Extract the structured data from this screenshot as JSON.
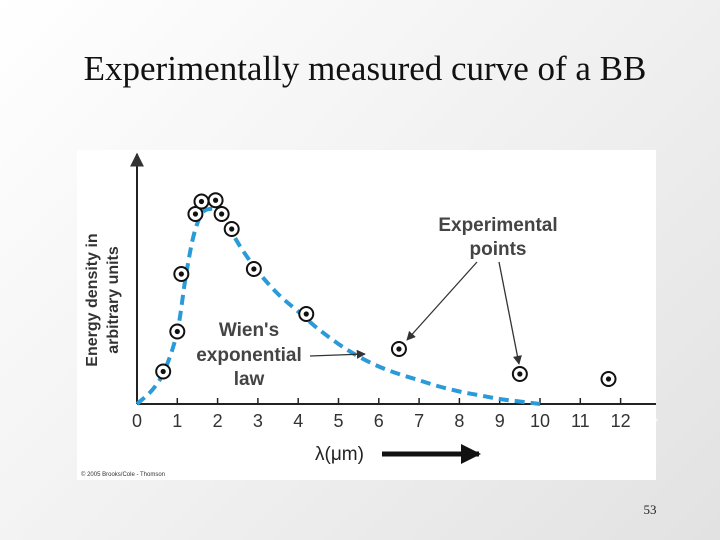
{
  "slide": {
    "title": "Experimentally measured curve of a BB",
    "page_number": "53"
  },
  "chart_data": {
    "type": "scatter",
    "title": "",
    "xlabel": "λ(μm)",
    "ylabel_lines": [
      "Energy density in",
      "arbitrary units"
    ],
    "xlim": [
      0,
      12.5
    ],
    "ylim": [
      0,
      1
    ],
    "x_ticks": [
      "0",
      "1",
      "2",
      "3",
      "4",
      "5",
      "6",
      "7",
      "8",
      "9",
      "10",
      "11",
      "12"
    ],
    "grid": false,
    "series": [
      {
        "kind": "points",
        "x": [
          0.65,
          1.0,
          1.1,
          1.45,
          1.6,
          1.95,
          2.1,
          2.35,
          2.9,
          4.2,
          6.5,
          9.5,
          11.7
        ],
        "y": [
          0.13,
          0.29,
          0.52,
          0.76,
          0.81,
          0.815,
          0.76,
          0.7,
          0.54,
          0.36,
          0.22,
          0.12,
          0.1
        ]
      },
      {
        "kind": "curve",
        "style": "dashed",
        "color": "#2a9ad8",
        "x": [
          0.0,
          0.4,
          0.7,
          1.0,
          1.2,
          1.4,
          1.6,
          1.8,
          2.0,
          2.3,
          2.6,
          3.0,
          3.5,
          4.0,
          4.5,
          5.0,
          5.5,
          6.0,
          6.5,
          7.0,
          7.5,
          8.0,
          8.5,
          9.0,
          9.5,
          10.0
        ],
        "y": [
          0.0,
          0.06,
          0.14,
          0.29,
          0.5,
          0.67,
          0.76,
          0.78,
          0.77,
          0.7,
          0.62,
          0.53,
          0.44,
          0.37,
          0.3,
          0.24,
          0.19,
          0.15,
          0.12,
          0.095,
          0.07,
          0.05,
          0.035,
          0.02,
          0.01,
          0.0
        ]
      }
    ],
    "annotations": {
      "experimental": [
        "Experimental",
        "points"
      ],
      "wien": [
        "Wien's",
        "exponential",
        "law"
      ]
    },
    "copyright": "© 2005 Brooks/Cole - Thomson"
  }
}
